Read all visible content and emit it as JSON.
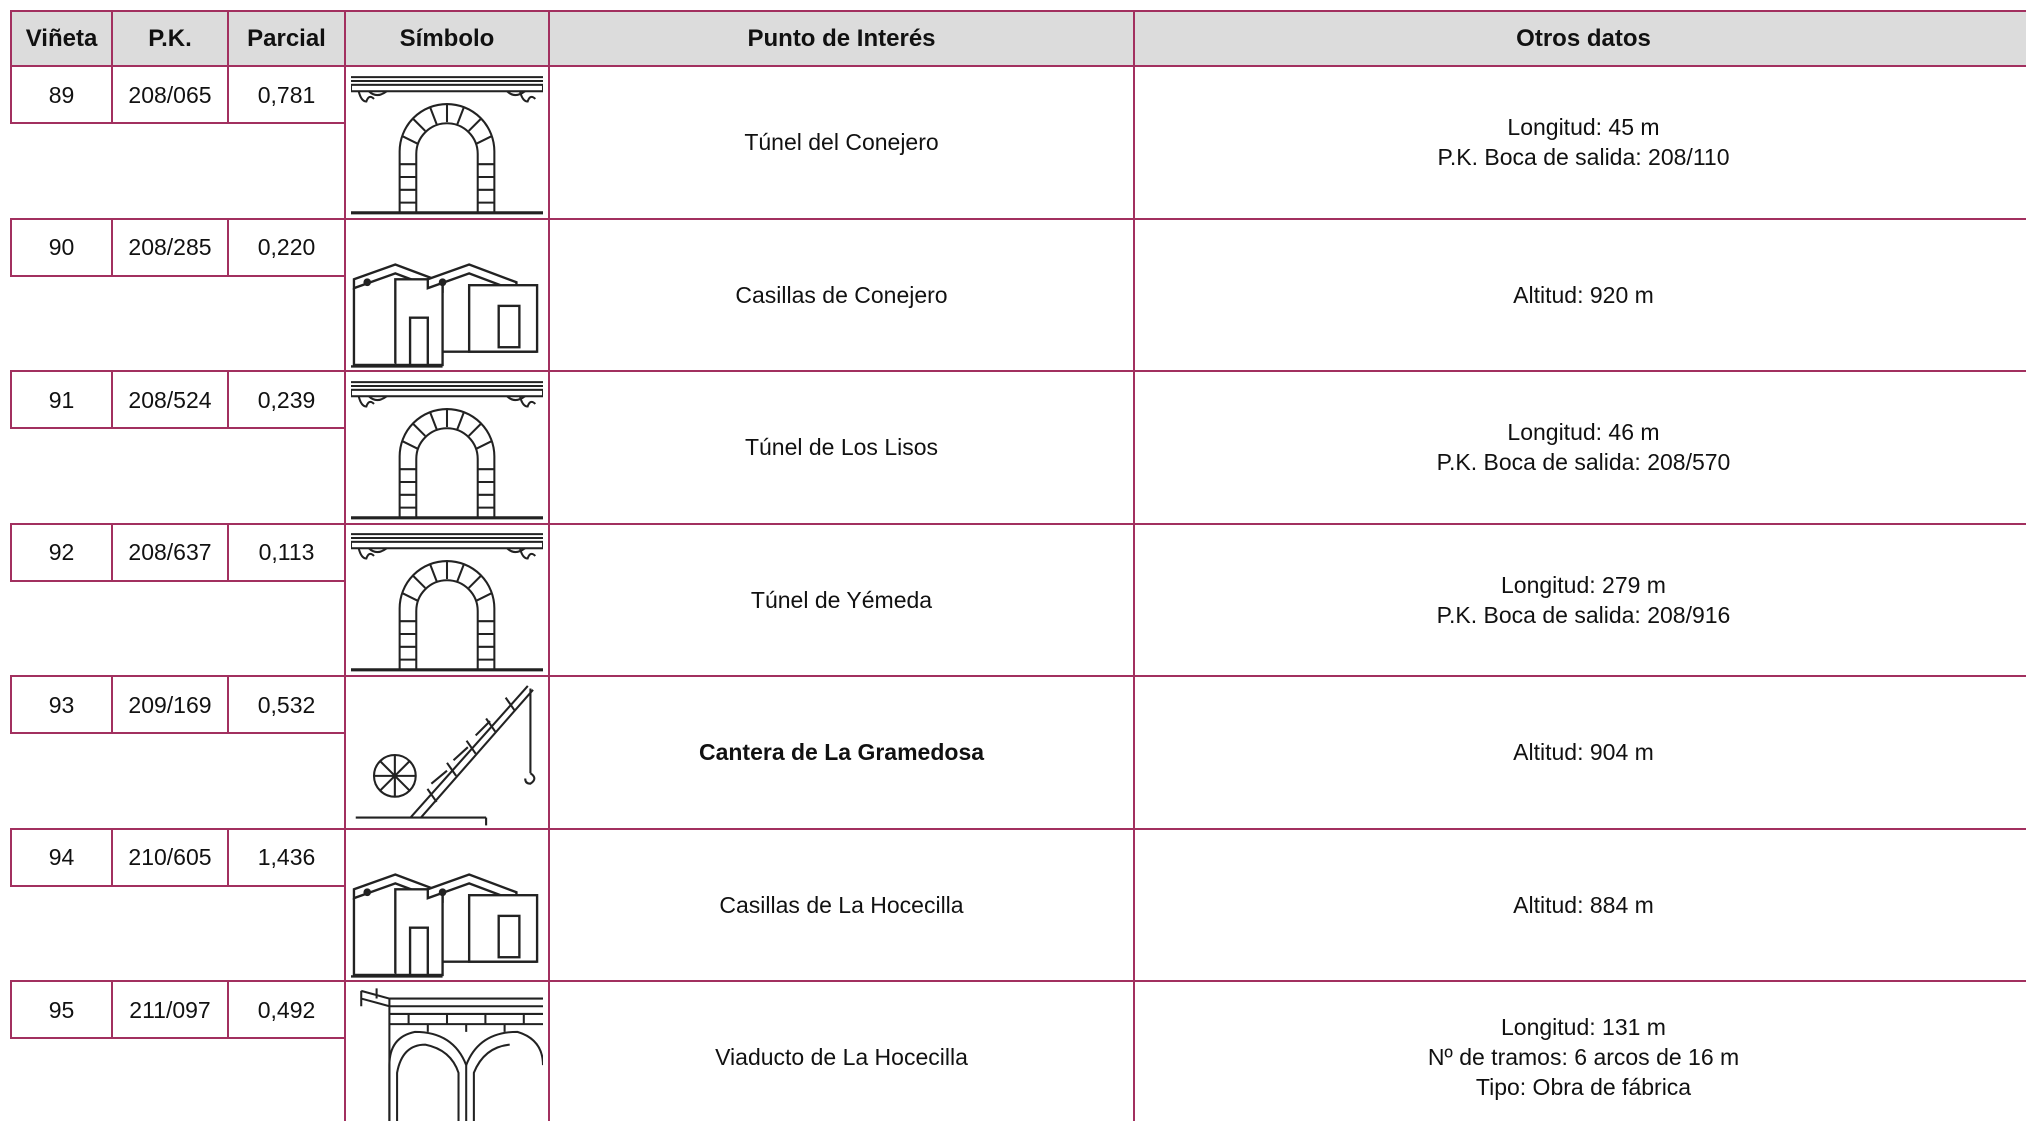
{
  "table": {
    "columns": [
      "Viñeta",
      "P.K.",
      "Parcial",
      "Símbolo",
      "Punto de Interés",
      "Otros datos"
    ],
    "rows": [
      {
        "vineta": "89",
        "pk": "208/065",
        "parcial": "0,781",
        "punto": "Túnel del Conejero",
        "otros": [
          "Longitud: 45 m",
          "P.K. Boca de salida: 208/110"
        ]
      },
      {
        "vineta": "90",
        "pk": "208/285",
        "parcial": "0,220",
        "punto": "Casillas de Conejero",
        "otros": [
          "Altitud: 920 m"
        ]
      },
      {
        "vineta": "91",
        "pk": "208/524",
        "parcial": "0,239",
        "punto": "Túnel de Los Lisos",
        "otros": [
          "Longitud: 46 m",
          "P.K. Boca de salida: 208/570"
        ]
      },
      {
        "vineta": "92",
        "pk": "208/637",
        "parcial": "0,113",
        "punto": "Túnel de Yémeda",
        "otros": [
          "Longitud: 279 m",
          "P.K. Boca de salida: 208/916"
        ]
      },
      {
        "vineta": "93",
        "pk": "209/169",
        "parcial": "0,532",
        "punto": "Cantera de La Gramedosa",
        "otros": [
          "Altitud: 904 m"
        ]
      },
      {
        "vineta": "94",
        "pk": "210/605",
        "parcial": "1,436",
        "punto": "Casillas de La Hocecilla",
        "otros": [
          "Altitud: 884 m"
        ]
      },
      {
        "vineta": "95",
        "pk": "211/097",
        "parcial": "0,492",
        "punto": "Viaducto de La Hocecilla",
        "otros": [
          "Longitud: 131 m",
          "Nº de tramos: 6 arcos de 16 m",
          "Tipo: Obra de fábrica"
        ]
      }
    ]
  }
}
